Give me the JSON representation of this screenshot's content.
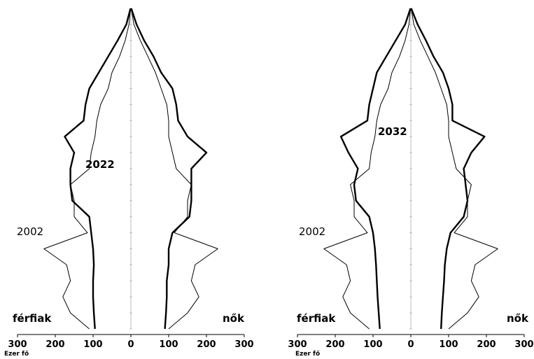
{
  "figure_title": "",
  "chart_data": [
    {
      "type": "area",
      "subtype": "population-pyramid",
      "title": "",
      "xlabel": "Ezer fő",
      "xticks": [
        300,
        200,
        100,
        0,
        100,
        200,
        300
      ],
      "xlim": [
        -300,
        300
      ],
      "left_label": "férfiak",
      "right_label": "nők",
      "ages": [
        0,
        5,
        10,
        15,
        20,
        25,
        30,
        35,
        40,
        45,
        50,
        55,
        60,
        65,
        70,
        75,
        80,
        85,
        90,
        95,
        100
      ],
      "series": [
        {
          "name": "2022",
          "style": "thick",
          "men": [
            95,
            98,
            100,
            100,
            98,
            100,
            105,
            110,
            155,
            160,
            160,
            150,
            175,
            125,
            120,
            110,
            85,
            60,
            35,
            12,
            1
          ],
          "women": [
            90,
            93,
            95,
            95,
            100,
            100,
            110,
            155,
            160,
            160,
            160,
            200,
            150,
            125,
            120,
            110,
            80,
            60,
            35,
            15,
            1
          ]
        },
        {
          "name": "2002",
          "style": "thin",
          "men": [
            110,
            160,
            180,
            160,
            170,
            230,
            115,
            150,
            150,
            160,
            110,
            105,
            95,
            90,
            80,
            60,
            50,
            30,
            15,
            5,
            1
          ],
          "women": [
            100,
            150,
            180,
            160,
            170,
            230,
            115,
            150,
            150,
            160,
            120,
            110,
            100,
            100,
            95,
            80,
            65,
            45,
            25,
            8,
            1
          ]
        }
      ],
      "series_labels": [
        {
          "series": "2022",
          "text": "2022"
        },
        {
          "series": "2002",
          "text": "2002"
        }
      ]
    },
    {
      "type": "area",
      "subtype": "population-pyramid",
      "title": "",
      "xlabel": "Ezer fő",
      "xticks": [
        300,
        200,
        100,
        0,
        100,
        200,
        300
      ],
      "xlim": [
        -300,
        300
      ],
      "left_label": "férfiak",
      "right_label": "nők",
      "ages": [
        0,
        5,
        10,
        15,
        20,
        25,
        30,
        35,
        40,
        45,
        50,
        55,
        60,
        65,
        70,
        75,
        80,
        85,
        90,
        95,
        100
      ],
      "series": [
        {
          "name": "2032",
          "style": "thick",
          "men": [
            82,
            85,
            88,
            90,
            92,
            95,
            100,
            110,
            145,
            150,
            140,
            165,
            185,
            115,
            110,
            100,
            90,
            65,
            40,
            15,
            1
          ],
          "women": [
            80,
            82,
            85,
            88,
            90,
            95,
            105,
            140,
            150,
            145,
            140,
            160,
            195,
            110,
            110,
            100,
            85,
            60,
            40,
            18,
            1
          ]
        },
        {
          "name": "2002",
          "style": "thin",
          "men": [
            110,
            160,
            180,
            160,
            170,
            230,
            115,
            150,
            150,
            160,
            110,
            105,
            95,
            90,
            80,
            60,
            50,
            30,
            15,
            5,
            1
          ],
          "women": [
            100,
            150,
            180,
            160,
            170,
            230,
            115,
            150,
            150,
            160,
            120,
            110,
            100,
            100,
            95,
            80,
            65,
            45,
            25,
            8,
            1
          ]
        }
      ],
      "series_labels": [
        {
          "series": "2032",
          "text": "2032"
        },
        {
          "series": "2002",
          "text": "2002"
        }
      ]
    }
  ]
}
